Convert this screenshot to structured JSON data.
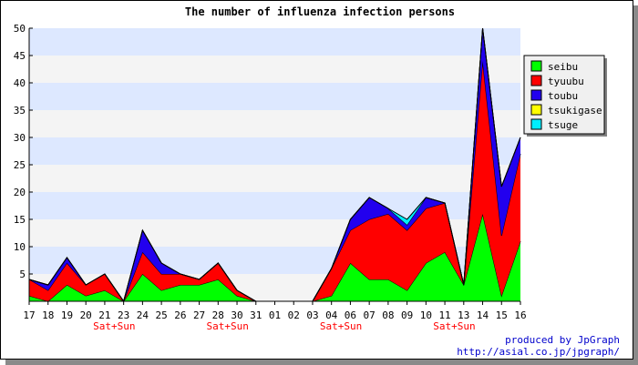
{
  "chart_data": {
    "type": "area",
    "stacked": true,
    "title": "The number of influenza infection persons",
    "x": [
      "17",
      "18",
      "19",
      "20",
      "21",
      "23",
      "24",
      "25",
      "26",
      "27",
      "28",
      "30",
      "31",
      "01",
      "02",
      "03",
      "04",
      "06",
      "07",
      "08",
      "09",
      "10",
      "11",
      "13",
      "14",
      "15",
      "16"
    ],
    "weekend_label": "Sat+Sun",
    "weekend_after": [
      "21",
      "28",
      "04",
      "11"
    ],
    "ylim": [
      0,
      50
    ],
    "yticks": [
      5,
      10,
      15,
      20,
      25,
      30,
      35,
      40,
      45,
      50
    ],
    "grid": "horizontal bands",
    "band_colors": [
      "#dde8ff",
      "#f4f4f4"
    ],
    "legend_position": "right",
    "series": [
      {
        "name": "seibu",
        "color": "#00ff00",
        "values": [
          1,
          0,
          3,
          1,
          2,
          0,
          5,
          2,
          3,
          3,
          4,
          1,
          0,
          0,
          0,
          0,
          1,
          7,
          4,
          4,
          2,
          7,
          9,
          3,
          16,
          1,
          11
        ]
      },
      {
        "name": "tyuubu",
        "color": "#ff0000",
        "values": [
          3,
          2,
          4,
          2,
          3,
          0,
          4,
          3,
          2,
          1,
          3,
          1,
          0,
          0,
          0,
          0,
          5,
          6,
          11,
          12,
          11,
          10,
          9,
          0,
          28,
          11,
          16
        ]
      },
      {
        "name": "toubu",
        "color": "#2200ee",
        "values": [
          0,
          1,
          1,
          0,
          0,
          0,
          4,
          2,
          0,
          0,
          0,
          0,
          0,
          0,
          0,
          0,
          0,
          2,
          4,
          1,
          1,
          2,
          0,
          0,
          6,
          9,
          3
        ]
      },
      {
        "name": "tsukigase",
        "color": "#ffff00",
        "values": [
          0,
          0,
          0,
          0,
          0,
          0,
          0,
          0,
          0,
          0,
          0,
          0,
          0,
          0,
          0,
          0,
          0,
          0,
          0,
          0,
          0,
          0,
          0,
          0,
          0,
          0,
          0
        ]
      },
      {
        "name": "tsuge",
        "color": "#00eeff",
        "values": [
          0,
          0,
          0,
          0,
          0,
          0,
          0,
          0,
          0,
          0,
          0,
          0,
          0,
          0,
          0,
          0,
          0,
          0,
          0,
          0,
          1,
          0,
          0,
          0,
          0,
          0,
          0
        ]
      }
    ]
  },
  "credit": {
    "line1": "produced by JpGraph",
    "line2": "http://asial.co.jp/jpgraph/"
  }
}
